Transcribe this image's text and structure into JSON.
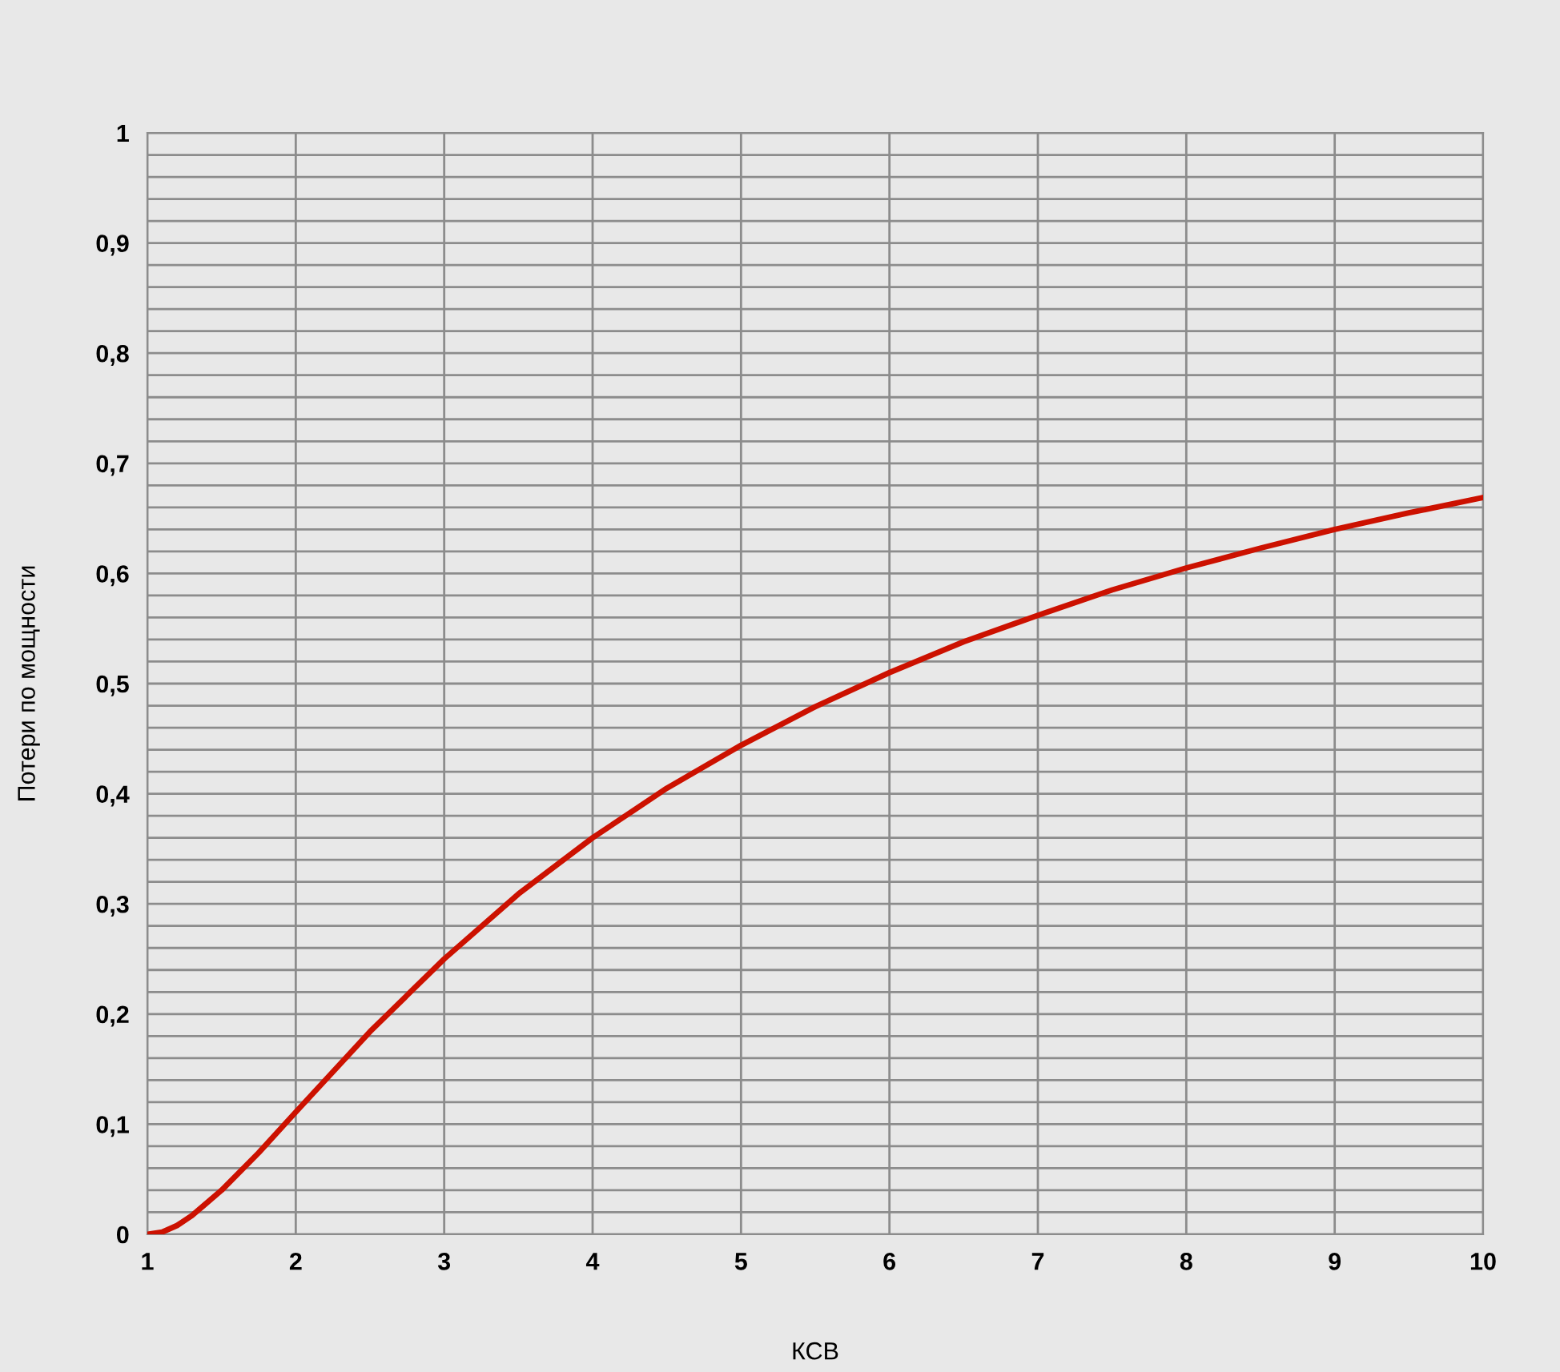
{
  "chart_data": {
    "type": "line",
    "xlabel": "КСВ",
    "ylabel": "Потери по мощности",
    "x": [
      1,
      1.1,
      1.2,
      1.3,
      1.5,
      1.75,
      2,
      2.5,
      3,
      3.5,
      4,
      4.5,
      5,
      5.5,
      6,
      6.5,
      7,
      7.5,
      8,
      8.5,
      9,
      9.5,
      10
    ],
    "series": [
      {
        "color": "#cc1100",
        "values": [
          0,
          0.002,
          0.008,
          0.017,
          0.04,
          0.074,
          0.111,
          0.184,
          0.25,
          0.309,
          0.36,
          0.405,
          0.444,
          0.479,
          0.51,
          0.538,
          0.562,
          0.585,
          0.605,
          0.623,
          0.64,
          0.655,
          0.669
        ]
      }
    ],
    "xlim": [
      1,
      10
    ],
    "xticks": [
      1,
      2,
      3,
      4,
      5,
      6,
      7,
      8,
      9,
      10
    ],
    "ylim": [
      0,
      1
    ],
    "yticks": [
      0,
      {
        "value": 0.02,
        "label": null
      },
      {
        "value": 0.04,
        "label": null
      },
      {
        "value": 0.06,
        "label": null
      },
      {
        "value": 0.08,
        "label": null
      },
      {
        "value": 0.1,
        "label": "0,1"
      },
      {
        "value": 0.12,
        "label": null
      },
      {
        "value": 0.14,
        "label": null
      },
      {
        "value": 0.16,
        "label": null
      },
      {
        "value": 0.18,
        "label": null
      },
      {
        "value": 0.2,
        "label": "0,2"
      },
      {
        "value": 0.22,
        "label": null
      },
      {
        "value": 0.24,
        "label": null
      },
      {
        "value": 0.26,
        "label": null
      },
      {
        "value": 0.28,
        "label": null
      },
      {
        "value": 0.3,
        "label": "0,3"
      },
      {
        "value": 0.32,
        "label": null
      },
      {
        "value": 0.34,
        "label": null
      },
      {
        "value": 0.36,
        "label": null
      },
      {
        "value": 0.38,
        "label": null
      },
      {
        "value": 0.4,
        "label": "0,4"
      },
      {
        "value": 0.42,
        "label": null
      },
      {
        "value": 0.44,
        "label": null
      },
      {
        "value": 0.46,
        "label": null
      },
      {
        "value": 0.48,
        "label": null
      },
      {
        "value": 0.5,
        "label": "0,5"
      },
      {
        "value": 0.52,
        "label": null
      },
      {
        "value": 0.54,
        "label": null
      },
      {
        "value": 0.56,
        "label": null
      },
      {
        "value": 0.58,
        "label": null
      },
      {
        "value": 0.6,
        "label": "0,6"
      },
      {
        "value": 0.62,
        "label": null
      },
      {
        "value": 0.64,
        "label": null
      },
      {
        "value": 0.66,
        "label": null
      },
      {
        "value": 0.68,
        "label": null
      },
      {
        "value": 0.7,
        "label": "0,7"
      },
      {
        "value": 0.72,
        "label": null
      },
      {
        "value": 0.74,
        "label": null
      },
      {
        "value": 0.76,
        "label": null
      },
      {
        "value": 0.78,
        "label": null
      },
      {
        "value": 0.8,
        "label": "0,8"
      },
      {
        "value": 0.82,
        "label": null
      },
      {
        "value": 0.84,
        "label": null
      },
      {
        "value": 0.86,
        "label": null
      },
      {
        "value": 0.88,
        "label": null
      },
      {
        "value": 0.9,
        "label": "0,9"
      },
      {
        "value": 0.92,
        "label": null
      },
      {
        "value": 0.94,
        "label": null
      },
      {
        "value": 0.96,
        "label": null
      },
      {
        "value": 0.98,
        "label": null
      },
      1
    ],
    "grid": true,
    "marker": "none",
    "line_style": "solid",
    "legend": false
  }
}
